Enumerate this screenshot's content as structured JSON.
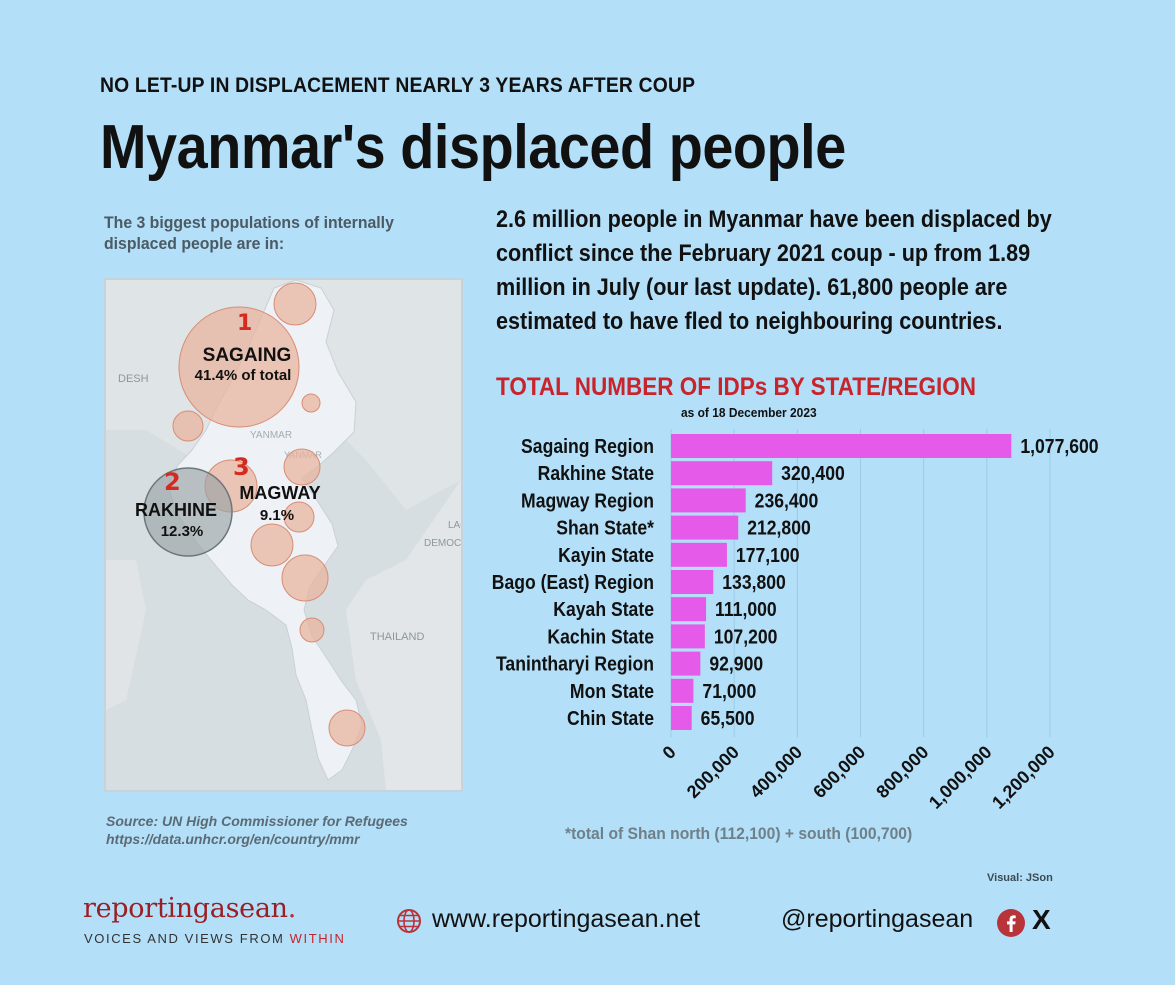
{
  "header": {
    "kicker": "NO LET-UP IN DISPLACEMENT NEARLY 3 YEARS AFTER  COUP",
    "title": "Myanmar's displaced people"
  },
  "map": {
    "intro": "The 3 biggest populations of internally displaced people are in:",
    "labels": {
      "sagaing_name": "SAGAING",
      "sagaing_share": "41.4% of total",
      "sagaing_rank": "1",
      "rakhine_name": "RAKHINE",
      "rakhine_share": "12.3%",
      "rakhine_rank": "2",
      "magway_name": "MAGWAY",
      "magway_share": "9.1%",
      "magway_rank": "3",
      "basemap_desh": "DESH",
      "basemap_myanmar": "YANMAR",
      "basemap_lao": "LAO",
      "basemap_democ": "DEMOCR",
      "basemap_thailand": "THAILAND"
    }
  },
  "summary": "2.6 million people in Myanmar have been displaced by conflict since the February 2021 coup - up from 1.89 million in July (our last update). 61,800 people are estimated to have fled to neighbouring countries.",
  "chart_data": {
    "type": "bar",
    "orientation": "horizontal",
    "title": "TOTAL NUMBER OF IDPs BY STATE/REGION",
    "subtitle": "as of 18 December 2023",
    "categories": [
      "Sagaing Region",
      "Rakhine State",
      "Magway Region",
      "Shan State*",
      "Kayin State",
      "Bago (East) Region",
      "Kayah State",
      "Kachin State",
      "Tanintharyi Region",
      "Mon State",
      "Chin State"
    ],
    "values": [
      1077600,
      320400,
      236400,
      212800,
      177100,
      133800,
      111000,
      107200,
      92900,
      71000,
      65500
    ],
    "value_labels": [
      "1,077,600",
      "320,400",
      "236,400",
      "212,800",
      "177,100",
      "133,800",
      "111,000",
      "107,200",
      "92,900",
      "71,000",
      "65,500"
    ],
    "xlim": [
      0,
      1200000
    ],
    "xticks": [
      0,
      200000,
      400000,
      600000,
      800000,
      1000000,
      1200000
    ],
    "xtick_labels": [
      "0",
      "200,000",
      "400,000",
      "600,000",
      "800,000",
      "1,000,000",
      "1,200,000"
    ],
    "grid": true,
    "bar_color": "#e55ae9",
    "footnote": "*total of Shan north (112,100) + south (100,700)"
  },
  "source": {
    "line1": "Source: UN High Commissioner for Refugees",
    "line2": "https://data.unhcr.org/en/country/mmr"
  },
  "credit": "Visual: JSon",
  "footer": {
    "logo_text": "reportingasean",
    "logo_dot": ".",
    "tagline_main": "VOICES AND VIEWS FROM ",
    "tagline_accent": "WITHIN",
    "website": "www.reportingasean.net",
    "handle": "@reportingasean",
    "x_glyph": "X",
    "icons": [
      "globe-icon",
      "facebook-icon",
      "x-icon"
    ]
  },
  "colors": {
    "background": "#b3dff8",
    "accent_red": "#c8242b",
    "bar": "#e55ae9",
    "bubble_fill": "#e8b49f",
    "bubble_stroke": "#d98c74",
    "rakhine_bubble": "#9aa3a6"
  }
}
